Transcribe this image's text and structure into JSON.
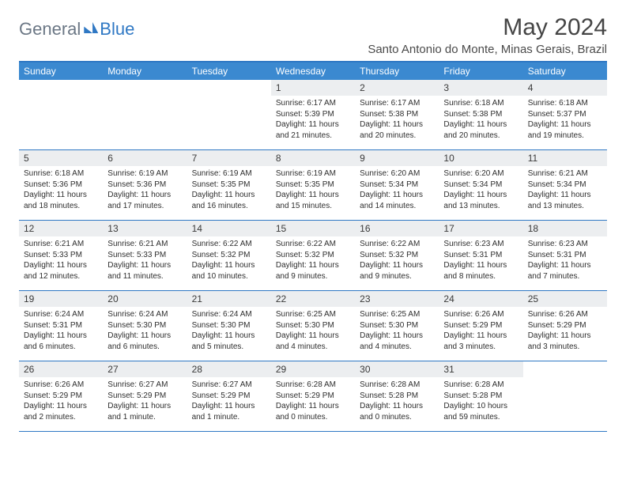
{
  "logo": {
    "general": "General",
    "blue": "Blue"
  },
  "title": "May 2024",
  "location": "Santo Antonio do Monte, Minas Gerais, Brazil",
  "dow": [
    "Sunday",
    "Monday",
    "Tuesday",
    "Wednesday",
    "Thursday",
    "Friday",
    "Saturday"
  ],
  "weeks": [
    [
      {
        "empty": true
      },
      {
        "empty": true
      },
      {
        "empty": true
      },
      {
        "n": "1",
        "sr": "Sunrise: 6:17 AM",
        "ss": "Sunset: 5:39 PM",
        "d1": "Daylight: 11 hours",
        "d2": "and 21 minutes."
      },
      {
        "n": "2",
        "sr": "Sunrise: 6:17 AM",
        "ss": "Sunset: 5:38 PM",
        "d1": "Daylight: 11 hours",
        "d2": "and 20 minutes."
      },
      {
        "n": "3",
        "sr": "Sunrise: 6:18 AM",
        "ss": "Sunset: 5:38 PM",
        "d1": "Daylight: 11 hours",
        "d2": "and 20 minutes."
      },
      {
        "n": "4",
        "sr": "Sunrise: 6:18 AM",
        "ss": "Sunset: 5:37 PM",
        "d1": "Daylight: 11 hours",
        "d2": "and 19 minutes."
      }
    ],
    [
      {
        "n": "5",
        "sr": "Sunrise: 6:18 AM",
        "ss": "Sunset: 5:36 PM",
        "d1": "Daylight: 11 hours",
        "d2": "and 18 minutes."
      },
      {
        "n": "6",
        "sr": "Sunrise: 6:19 AM",
        "ss": "Sunset: 5:36 PM",
        "d1": "Daylight: 11 hours",
        "d2": "and 17 minutes."
      },
      {
        "n": "7",
        "sr": "Sunrise: 6:19 AM",
        "ss": "Sunset: 5:35 PM",
        "d1": "Daylight: 11 hours",
        "d2": "and 16 minutes."
      },
      {
        "n": "8",
        "sr": "Sunrise: 6:19 AM",
        "ss": "Sunset: 5:35 PM",
        "d1": "Daylight: 11 hours",
        "d2": "and 15 minutes."
      },
      {
        "n": "9",
        "sr": "Sunrise: 6:20 AM",
        "ss": "Sunset: 5:34 PM",
        "d1": "Daylight: 11 hours",
        "d2": "and 14 minutes."
      },
      {
        "n": "10",
        "sr": "Sunrise: 6:20 AM",
        "ss": "Sunset: 5:34 PM",
        "d1": "Daylight: 11 hours",
        "d2": "and 13 minutes."
      },
      {
        "n": "11",
        "sr": "Sunrise: 6:21 AM",
        "ss": "Sunset: 5:34 PM",
        "d1": "Daylight: 11 hours",
        "d2": "and 13 minutes."
      }
    ],
    [
      {
        "n": "12",
        "sr": "Sunrise: 6:21 AM",
        "ss": "Sunset: 5:33 PM",
        "d1": "Daylight: 11 hours",
        "d2": "and 12 minutes."
      },
      {
        "n": "13",
        "sr": "Sunrise: 6:21 AM",
        "ss": "Sunset: 5:33 PM",
        "d1": "Daylight: 11 hours",
        "d2": "and 11 minutes."
      },
      {
        "n": "14",
        "sr": "Sunrise: 6:22 AM",
        "ss": "Sunset: 5:32 PM",
        "d1": "Daylight: 11 hours",
        "d2": "and 10 minutes."
      },
      {
        "n": "15",
        "sr": "Sunrise: 6:22 AM",
        "ss": "Sunset: 5:32 PM",
        "d1": "Daylight: 11 hours",
        "d2": "and 9 minutes."
      },
      {
        "n": "16",
        "sr": "Sunrise: 6:22 AM",
        "ss": "Sunset: 5:32 PM",
        "d1": "Daylight: 11 hours",
        "d2": "and 9 minutes."
      },
      {
        "n": "17",
        "sr": "Sunrise: 6:23 AM",
        "ss": "Sunset: 5:31 PM",
        "d1": "Daylight: 11 hours",
        "d2": "and 8 minutes."
      },
      {
        "n": "18",
        "sr": "Sunrise: 6:23 AM",
        "ss": "Sunset: 5:31 PM",
        "d1": "Daylight: 11 hours",
        "d2": "and 7 minutes."
      }
    ],
    [
      {
        "n": "19",
        "sr": "Sunrise: 6:24 AM",
        "ss": "Sunset: 5:31 PM",
        "d1": "Daylight: 11 hours",
        "d2": "and 6 minutes."
      },
      {
        "n": "20",
        "sr": "Sunrise: 6:24 AM",
        "ss": "Sunset: 5:30 PM",
        "d1": "Daylight: 11 hours",
        "d2": "and 6 minutes."
      },
      {
        "n": "21",
        "sr": "Sunrise: 6:24 AM",
        "ss": "Sunset: 5:30 PM",
        "d1": "Daylight: 11 hours",
        "d2": "and 5 minutes."
      },
      {
        "n": "22",
        "sr": "Sunrise: 6:25 AM",
        "ss": "Sunset: 5:30 PM",
        "d1": "Daylight: 11 hours",
        "d2": "and 4 minutes."
      },
      {
        "n": "23",
        "sr": "Sunrise: 6:25 AM",
        "ss": "Sunset: 5:30 PM",
        "d1": "Daylight: 11 hours",
        "d2": "and 4 minutes."
      },
      {
        "n": "24",
        "sr": "Sunrise: 6:26 AM",
        "ss": "Sunset: 5:29 PM",
        "d1": "Daylight: 11 hours",
        "d2": "and 3 minutes."
      },
      {
        "n": "25",
        "sr": "Sunrise: 6:26 AM",
        "ss": "Sunset: 5:29 PM",
        "d1": "Daylight: 11 hours",
        "d2": "and 3 minutes."
      }
    ],
    [
      {
        "n": "26",
        "sr": "Sunrise: 6:26 AM",
        "ss": "Sunset: 5:29 PM",
        "d1": "Daylight: 11 hours",
        "d2": "and 2 minutes."
      },
      {
        "n": "27",
        "sr": "Sunrise: 6:27 AM",
        "ss": "Sunset: 5:29 PM",
        "d1": "Daylight: 11 hours",
        "d2": "and 1 minute."
      },
      {
        "n": "28",
        "sr": "Sunrise: 6:27 AM",
        "ss": "Sunset: 5:29 PM",
        "d1": "Daylight: 11 hours",
        "d2": "and 1 minute."
      },
      {
        "n": "29",
        "sr": "Sunrise: 6:28 AM",
        "ss": "Sunset: 5:29 PM",
        "d1": "Daylight: 11 hours",
        "d2": "and 0 minutes."
      },
      {
        "n": "30",
        "sr": "Sunrise: 6:28 AM",
        "ss": "Sunset: 5:28 PM",
        "d1": "Daylight: 11 hours",
        "d2": "and 0 minutes."
      },
      {
        "n": "31",
        "sr": "Sunrise: 6:28 AM",
        "ss": "Sunset: 5:28 PM",
        "d1": "Daylight: 10 hours",
        "d2": "and 59 minutes."
      },
      {
        "empty": true
      }
    ]
  ]
}
